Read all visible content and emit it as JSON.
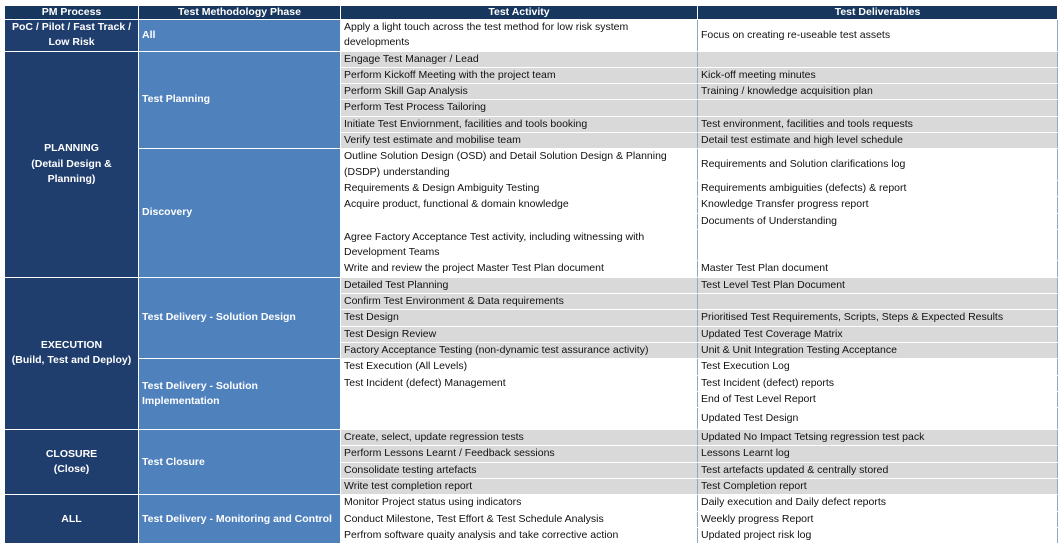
{
  "table": {
    "header": [
      "PM Process",
      "Test Methodology Phase",
      "Test Activity",
      "Test Deliverables"
    ],
    "groups": [
      {
        "process": [
          "PoC / Pilot / Fast Track / Low Risk"
        ],
        "phases": [
          {
            "phase": "All",
            "rows": [
              [
                "Apply a light touch across the test method for low risk system developments",
                "Focus on creating re-useable test assets"
              ]
            ]
          }
        ]
      },
      {
        "process": [
          "PLANNING",
          "(Detail Design & Planning)"
        ],
        "phases": [
          {
            "phase": "Test Planning",
            "rows": [
              [
                "Engage Test Manager / Lead",
                null
              ],
              [
                "Perform Kickoff Meeting with the project team",
                "Kick-off meeting minutes"
              ],
              [
                "Perform Skill Gap Analysis",
                "Training / knowledge acquisition plan"
              ],
              [
                "Perform Test Process Tailoring",
                null
              ],
              [
                "Initiate Test Enviornment, facilities and tools booking",
                "Test environment, facilities and tools requests"
              ],
              [
                "Verify test estimate and mobilise team",
                "Detail test estimate and high level schedule"
              ]
            ]
          },
          {
            "phase": "Discovery",
            "rows": [
              [
                "Outline Solution Design (OSD) and Detail Solution Design & Planning (DSDP) understanding",
                "Requirements  and Solution clarifications log"
              ],
              [
                "Requirements & Design Ambiguity Testing",
                "Requirements ambiguities (defects) & report"
              ],
              [
                "Acquire product, functional & domain knowledge",
                "Knowledge Transfer progress report"
              ],
              [
                null,
                "Documents of Understanding"
              ],
              [
                "Agree Factory Acceptance Test activity, including witnessing with Development Teams",
                null
              ],
              [
                "Write  and review the project Master Test Plan document",
                "Master Test Plan document"
              ]
            ]
          }
        ]
      },
      {
        "process": [
          "EXECUTION",
          "(Build, Test and Deploy)"
        ],
        "phases": [
          {
            "phase": "Test Delivery - Solution Design",
            "rows": [
              [
                "Detailed Test Planning",
                "Test Level Test Plan Document"
              ],
              [
                "Confirm Test Environment & Data requirements",
                null
              ],
              [
                "Test Design",
                "Prioritised Test Requirements, Scripts, Steps & Expected Results"
              ],
              [
                "Test Design Review",
                "Updated Test Coverage Matrix"
              ],
              [
                "Factory Acceptance Testing (non-dynamic test assurance activity)",
                "Unit & Unit Integration Testing Acceptance"
              ]
            ]
          },
          {
            "phase": "Test Delivery - Solution Implementation",
            "rows": [
              [
                "Test Execution (All Levels)",
                "Test Execution Log"
              ],
              [
                "Test Incident (defect) Management",
                "Test Incident (defect) reports"
              ],
              [
                null,
                "End of Test Level Report"
              ],
              [
                null,
                "Updated Test Design"
              ]
            ]
          }
        ]
      },
      {
        "process": [
          "CLOSURE",
          "(Close)"
        ],
        "phases": [
          {
            "phase": "Test Closure",
            "rows": [
              [
                "Create, select, update regression tests",
                "Updated No Impact Tetsing regression test pack"
              ],
              [
                "Perform Lessons Learnt / Feedback sessions",
                "Lessons Learnt log"
              ],
              [
                "Consolidate testing artefacts",
                "Test artefacts updated & centrally stored"
              ],
              [
                "Write test completion report",
                "Test Completion report"
              ]
            ]
          }
        ]
      },
      {
        "process": [
          "ALL"
        ],
        "phases": [
          {
            "phase": "Test Delivery -  Monitoring and Control",
            "rows": [
              [
                "Monitor Project status using indicators",
                "Daily execution and Daily defect reports"
              ],
              [
                "Conduct Milestone, Test Effort & Test Schedule Analysis",
                "Weekly progress Report"
              ],
              [
                "Perfrom software quaity analysis and take corrective action",
                "Updated project risk log"
              ]
            ]
          }
        ]
      }
    ]
  }
}
